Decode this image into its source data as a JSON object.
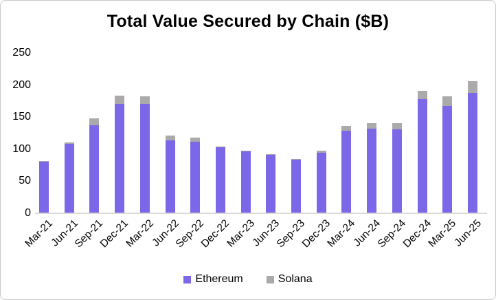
{
  "chart_data": {
    "type": "bar",
    "stacked": true,
    "title": "Total Value Secured by Chain ($B)",
    "xlabel": "",
    "ylabel": "",
    "ylim": [
      0,
      250
    ],
    "yticks": [
      0,
      50,
      100,
      150,
      200,
      250
    ],
    "grid": false,
    "legend_position": "bottom",
    "categories": [
      "Mar-21",
      "Jun-21",
      "Sep-21",
      "Dec-21",
      "Mar-22",
      "Jun-22",
      "Sep-22",
      "Dec-22",
      "Mar-23",
      "Jun-23",
      "Sep-23",
      "Dec-23",
      "Mar-24",
      "Jun-24",
      "Sep-24",
      "Dec-24",
      "Mar-25",
      "Jun-25"
    ],
    "series": [
      {
        "name": "Ethereum",
        "color": "#7A68E8",
        "values": [
          80,
          107,
          136,
          170,
          169,
          113,
          110,
          102,
          96,
          90,
          83,
          93,
          128,
          131,
          130,
          177,
          166,
          187
        ]
      },
      {
        "name": "Solana",
        "color": "#ABA9A9",
        "values": [
          1,
          2,
          11,
          12,
          12,
          7,
          7,
          1,
          1,
          1,
          1,
          4,
          7,
          9,
          10,
          13,
          15,
          18
        ]
      }
    ],
    "colors": {
      "axis_line": "#D9D9D9",
      "text": "#000000",
      "background": "#FFFFFF"
    }
  }
}
